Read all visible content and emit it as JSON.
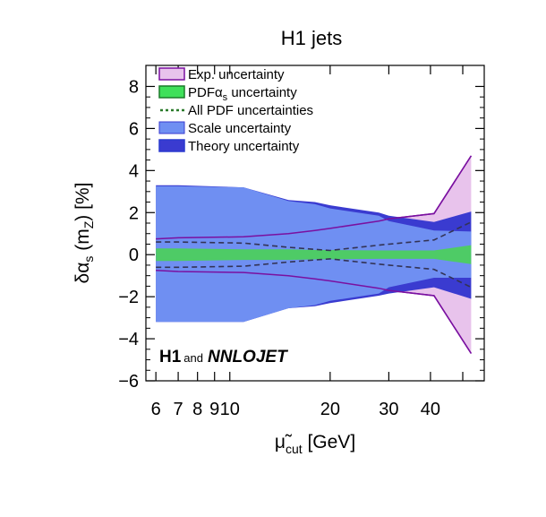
{
  "colors": {
    "exp": "#e8c3ec",
    "exp_edge": "#7a10a0",
    "theory": "#3a3bd0",
    "scale": "#6f8ff2",
    "pdf": "#4ecb66",
    "pdf_edge": "#1c7a2a",
    "allpdf_line": "#2a7a2a",
    "dashed": "#333355"
  },
  "chart_data": {
    "type": "area",
    "title": "H1 jets",
    "xlabel": "μ̃_cut [GeV]",
    "xlabel_main": "μ̃",
    "xlabel_sub": "cut",
    "xlabel_unit": " [GeV]",
    "ylabel": "δα_s (m_Z) [%]",
    "ylabel_parts": {
      "delta": "δα",
      "sub_s": "s",
      "open": " (m",
      "sub_z": "Z",
      "close": ") [%]"
    },
    "x_scale": "log",
    "xlim": [
      5.6,
      58
    ],
    "ylim": [
      -6,
      9
    ],
    "x_ticks": [
      6,
      7,
      8,
      9,
      10,
      20,
      30,
      40
    ],
    "x_tick_labels": [
      "6",
      "7",
      "8",
      "9",
      "10",
      "20",
      "30",
      "40"
    ],
    "y_ticks": [
      -6,
      -4,
      -2,
      0,
      2,
      4,
      6,
      8
    ],
    "y_tick_labels": [
      "−6",
      "−4",
      "−2",
      "0",
      "2",
      "4",
      "6",
      "8"
    ],
    "legend_position": "top-left",
    "x": [
      6,
      7,
      11,
      15,
      18,
      20,
      28,
      30,
      41,
      53
    ],
    "series": [
      {
        "name": "Exp. uncertainty",
        "upper": [
          0.75,
          0.8,
          0.85,
          1.0,
          1.15,
          1.25,
          1.6,
          1.7,
          1.95,
          4.7
        ],
        "lower": [
          -0.75,
          -0.8,
          -0.85,
          -1.0,
          -1.15,
          -1.25,
          -1.6,
          -1.7,
          -1.95,
          -4.7
        ]
      },
      {
        "name": "Theory uncertainty",
        "upper": [
          3.3,
          3.3,
          3.2,
          2.6,
          2.5,
          2.35,
          2.0,
          1.85,
          1.55,
          2.05
        ],
        "lower": [
          -3.2,
          -3.2,
          -3.2,
          -2.55,
          -2.45,
          -2.3,
          -1.95,
          -1.85,
          -1.55,
          -2.1
        ]
      },
      {
        "name": "Scale uncertainty",
        "upper": [
          3.25,
          3.25,
          3.2,
          2.55,
          2.4,
          2.2,
          1.85,
          1.6,
          1.15,
          1.1
        ],
        "lower": [
          -3.2,
          -3.2,
          -3.2,
          -2.55,
          -2.4,
          -2.2,
          -1.85,
          -1.55,
          -1.1,
          -1.1
        ]
      },
      {
        "name": "PDFαs uncertainty",
        "name_main": "PDFα",
        "name_sub": "s",
        "name_rest": " uncertainty",
        "upper": [
          0.3,
          0.3,
          0.25,
          0.25,
          0.22,
          0.22,
          0.2,
          0.2,
          0.2,
          0.45
        ],
        "lower": [
          -0.3,
          -0.3,
          -0.25,
          -0.25,
          -0.22,
          -0.22,
          -0.2,
          -0.2,
          -0.2,
          -0.45
        ]
      },
      {
        "name": "All PDF uncertainties",
        "upper": [
          0.6,
          0.6,
          0.55,
          0.35,
          0.25,
          0.2,
          0.45,
          0.5,
          0.7,
          1.55
        ],
        "lower": [
          -0.6,
          -0.6,
          -0.55,
          -0.35,
          -0.25,
          -0.2,
          -0.45,
          -0.5,
          -0.7,
          -1.55
        ]
      }
    ],
    "annotation": {
      "h1": "H1",
      "and": "and",
      "nnlojet": "NNLOJET"
    }
  }
}
